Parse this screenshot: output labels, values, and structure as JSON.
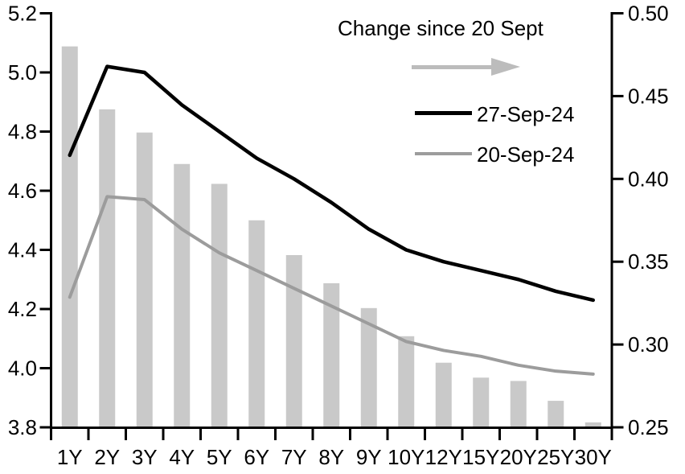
{
  "legend": {
    "change_label": "Change since 20 Sept",
    "series1_label": "27-Sep-24",
    "series2_label": "20-Sep-24"
  },
  "colors": {
    "bar": "#C9C9C9",
    "line_27_sep": "#000000",
    "line_20_sep": "#9C9C9C",
    "legend_arrow": "#BCBCBC",
    "axis": "#000000",
    "text": "#000000",
    "background": "#FFFFFF"
  },
  "chart_data": {
    "type": "combo-bar-line",
    "title": "",
    "categories": [
      "1Y",
      "2Y",
      "3Y",
      "4Y",
      "5Y",
      "6Y",
      "7Y",
      "8Y",
      "9Y",
      "10Y",
      "12Y",
      "15Y",
      "20Y",
      "25Y",
      "30Y"
    ],
    "series": [
      {
        "name": "Change since 20 Sept",
        "type": "bar",
        "axis": "right",
        "color": "#C9C9C9",
        "values": [
          0.48,
          0.442,
          0.428,
          0.409,
          0.397,
          0.375,
          0.354,
          0.337,
          0.322,
          0.305,
          0.289,
          0.28,
          0.278,
          0.266,
          0.253
        ]
      },
      {
        "name": "27-Sep-24",
        "type": "line",
        "axis": "left",
        "color": "#000000",
        "values": [
          4.72,
          5.02,
          5.0,
          4.89,
          4.8,
          4.71,
          4.64,
          4.56,
          4.47,
          4.4,
          4.36,
          4.33,
          4.3,
          4.26,
          4.23
        ]
      },
      {
        "name": "20-Sep-24",
        "type": "line",
        "axis": "left",
        "color": "#9C9C9C",
        "values": [
          4.24,
          4.58,
          4.57,
          4.47,
          4.39,
          4.33,
          4.27,
          4.21,
          4.15,
          4.09,
          4.06,
          4.04,
          4.01,
          3.99,
          3.98
        ]
      }
    ],
    "left_axis": {
      "min": 3.8,
      "max": 5.2,
      "step": 0.2,
      "tick_labels": [
        "3.8",
        "4.0",
        "4.2",
        "4.4",
        "4.6",
        "4.8",
        "5.0",
        "5.2"
      ]
    },
    "right_axis": {
      "min": 0.25,
      "max": 0.5,
      "step": 0.05,
      "tick_labels": [
        "0.25",
        "0.30",
        "0.35",
        "0.40",
        "0.45",
        "0.50"
      ]
    },
    "grid": false,
    "legend_position": "top-center-inside"
  }
}
